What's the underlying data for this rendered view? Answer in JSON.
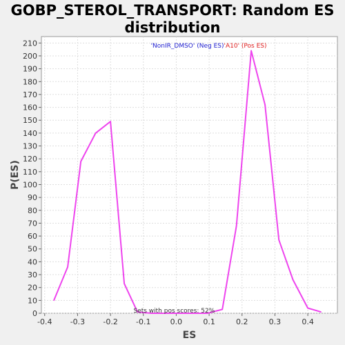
{
  "chart_data": {
    "type": "line",
    "title_line1": "GOBP_STEROL_TRANSPORT: Random ES",
    "title_line2": "distribution",
    "xlabel": "ES",
    "ylabel": "P(ES)",
    "xlim": [
      -0.41,
      0.49
    ],
    "ylim": [
      0,
      215
    ],
    "x_ticks": [
      -0.4,
      -0.3,
      -0.2,
      -0.1,
      0.0,
      0.1,
      0.2,
      0.3,
      0.4
    ],
    "x_tick_labels": [
      "-0.4",
      "-0.3",
      "-0.2",
      "-0.1",
      "0.0",
      "0.1",
      "0.2",
      "0.3",
      "0.4"
    ],
    "y_ticks": [
      0,
      10,
      20,
      30,
      40,
      50,
      60,
      70,
      80,
      90,
      100,
      110,
      120,
      130,
      140,
      150,
      160,
      170,
      180,
      190,
      200,
      210
    ],
    "legend_neg": "'NonIR_DMSO' (Neg ES)",
    "legend_pos": "'A10' (Pos ES)",
    "annotation": "Sets with pos scores: 52%",
    "grid": true,
    "series_color": "#ee44ee",
    "series": [
      {
        "x": [
          -0.372,
          -0.33,
          -0.29,
          -0.245,
          -0.2,
          -0.158,
          -0.118,
          -0.075,
          -0.03,
          0.01,
          0.055,
          0.095,
          0.14,
          0.183,
          0.228,
          0.27,
          0.312,
          0.355,
          0.4,
          0.44
        ],
        "y": [
          10,
          36,
          118,
          140,
          149,
          23,
          1,
          0,
          0,
          0,
          0,
          0,
          3,
          68,
          204,
          162,
          57,
          26,
          4,
          1
        ]
      }
    ]
  }
}
